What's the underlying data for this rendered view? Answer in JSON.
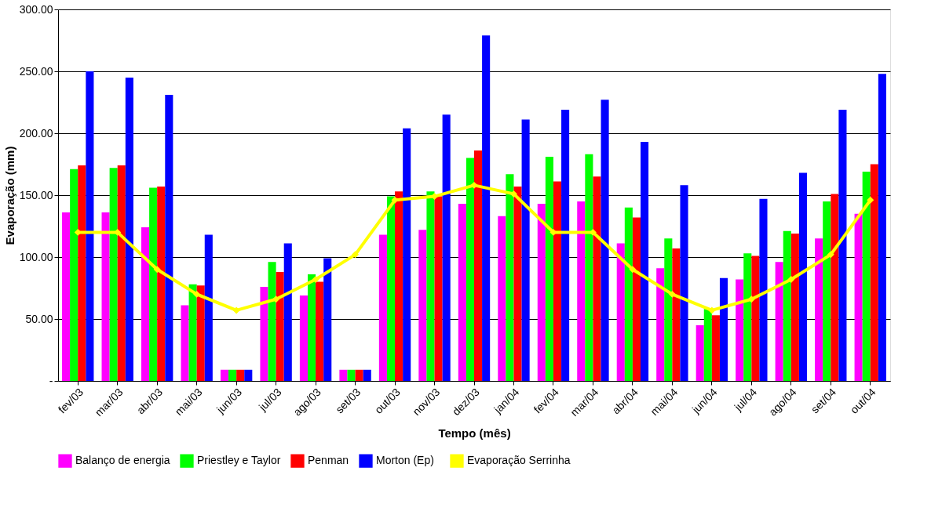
{
  "chart_data": {
    "type": "bar",
    "xlabel": "Tempo (mês)",
    "ylabel": "Evaporação (mm)",
    "categories": [
      "fev/03",
      "mar/03",
      "abr/03",
      "mai/03",
      "jun/03",
      "jul/03",
      "ago/03",
      "set/03",
      "out/03",
      "nov/03",
      "dez/03",
      "jan/04",
      "fev/04",
      "mar/04",
      "abr/04",
      "mai/04",
      "jun/04",
      "jul/04",
      "ago/04",
      "set/04",
      "out/04"
    ],
    "series": [
      {
        "name": "Balanço de energia",
        "color": "#ff00ff",
        "values": [
          136,
          136,
          124,
          61,
          9,
          76,
          69,
          9,
          118,
          122,
          143,
          133,
          143,
          145,
          111,
          91,
          45,
          82,
          96,
          115,
          135
        ]
      },
      {
        "name": "Priestley e Taylor",
        "color": "#00ff00",
        "values": [
          171,
          172,
          156,
          78,
          9,
          96,
          86,
          9,
          149,
          153,
          180,
          167,
          181,
          183,
          140,
          115,
          58,
          103,
          121,
          145,
          169
        ]
      },
      {
        "name": "Penman",
        "color": "#ff0000",
        "values": [
          174,
          174,
          157,
          77,
          9,
          88,
          80,
          9,
          153,
          149,
          186,
          157,
          161,
          165,
          132,
          107,
          53,
          101,
          119,
          151,
          175
        ]
      },
      {
        "name": "Morton   (Ep)",
        "color": "#0000ff",
        "values": [
          250,
          245,
          231,
          118,
          9,
          111,
          99,
          9,
          204,
          215,
          279,
          211,
          219,
          227,
          193,
          158,
          83,
          147,
          168,
          219,
          248
        ]
      },
      {
        "name": "Evaporação Serrinha",
        "type": "line",
        "color": "#ffff00",
        "marker": "diamond",
        "values": [
          120,
          120,
          90,
          70,
          57,
          66,
          82,
          102,
          146,
          149,
          158,
          151,
          120,
          120,
          90,
          70,
          57,
          66,
          82,
          102,
          146
        ]
      }
    ],
    "ylim": [
      0,
      300
    ],
    "yticks": [
      {
        "value": 0,
        "label": "-"
      },
      {
        "value": 50,
        "label": "50.00"
      },
      {
        "value": 100,
        "label": "100.00"
      },
      {
        "value": 150,
        "label": "150.00"
      },
      {
        "value": 200,
        "label": "200.00"
      },
      {
        "value": 250,
        "label": "250.00"
      },
      {
        "value": 300,
        "label": "300.00"
      }
    ],
    "grid": "y",
    "legend": "bottom"
  }
}
